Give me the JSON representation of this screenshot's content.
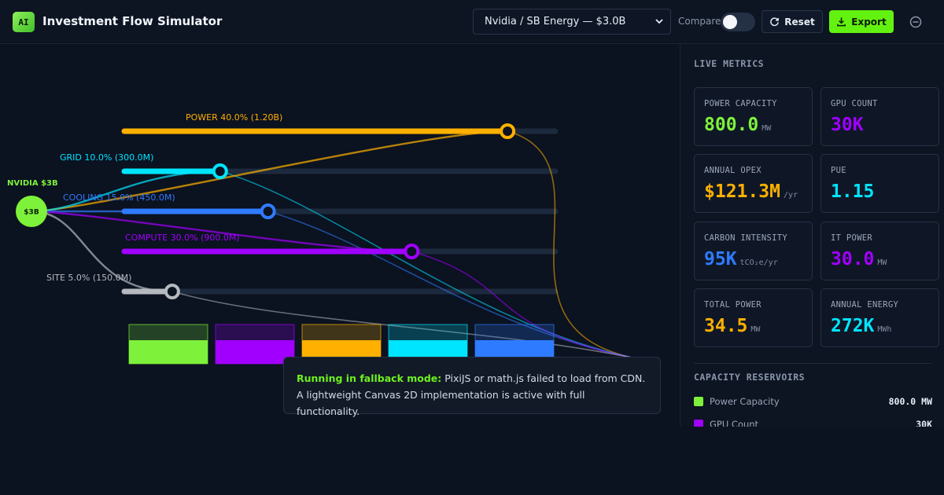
{
  "header": {
    "logo_text": "AI",
    "title": "Investment Flow Simulator",
    "scenario_selected": "Nvidia / SB Energy — $3.0B",
    "compare_label": "Compare",
    "compare_on": false,
    "reset_label": "Reset",
    "export_label": "Export"
  },
  "source": {
    "label": "NVIDIA $3B",
    "node_text": "$3B",
    "color": "#7ef23a"
  },
  "allocations": [
    {
      "key": "power",
      "label": "POWER 40.0% (1.20B)",
      "percent": 40.0,
      "amount": "1.20B",
      "color": "#ffb000"
    },
    {
      "key": "grid",
      "label": "GRID 10.0% (300.0M)",
      "percent": 10.0,
      "amount": "300.0M",
      "color": "#00e5ff"
    },
    {
      "key": "cooling",
      "label": "COOLING 15.0% (450.0M)",
      "percent": 15.0,
      "amount": "450.0M",
      "color": "#2f7bff"
    },
    {
      "key": "compute",
      "label": "COMPUTE 30.0% (900.0M)",
      "percent": 30.0,
      "amount": "900.0M",
      "color": "#a100ff"
    },
    {
      "key": "site",
      "label": "SITE 5.0% (150.0M)",
      "percent": 5.0,
      "amount": "150.0M",
      "color": "#b5b9c0"
    }
  ],
  "reservoirs": [
    {
      "color": "#7ef23a",
      "fill": 0.6
    },
    {
      "color": "#a100ff",
      "fill": 0.6
    },
    {
      "color": "#ffb000",
      "fill": 0.6
    },
    {
      "color": "#00e5ff",
      "fill": 0.6
    },
    {
      "color": "#2f7bff",
      "fill": 0.6
    }
  ],
  "notice": {
    "highlight": "Running in fallback mode:",
    "text": " PixiJS or math.js failed to load from CDN. A lightweight Canvas 2D implementation is active with full functionality."
  },
  "sidebar": {
    "live_title": "LIVE METRICS",
    "metrics": [
      {
        "label": "POWER CAPACITY",
        "value": "800.0",
        "unit": "MW",
        "color": "#7ef23a"
      },
      {
        "label": "GPU COUNT",
        "value": "30K",
        "unit": "",
        "color": "#a100ff"
      },
      {
        "label": "ANNUAL OPEX",
        "value": "$121.3M",
        "unit": "/yr",
        "color": "#ffb000"
      },
      {
        "label": "PUE",
        "value": "1.15",
        "unit": "",
        "color": "#00e5ff"
      },
      {
        "label": "CARBON INTENSITY",
        "value": "95K",
        "unit": "tCO₂e/yr",
        "color": "#2f7bff"
      },
      {
        "label": "IT POWER",
        "value": "30.0",
        "unit": "MW",
        "color": "#a100ff"
      },
      {
        "label": "TOTAL POWER",
        "value": "34.5",
        "unit": "MW",
        "color": "#ffb000"
      },
      {
        "label": "ANNUAL ENERGY",
        "value": "272K",
        "unit": "MWh",
        "color": "#00e5ff"
      }
    ],
    "reservoirs_title": "CAPACITY RESERVOIRS",
    "reservoir_rows": [
      {
        "name": "Power Capacity",
        "value": "800.0 MW",
        "color": "#7ef23a"
      },
      {
        "name": "GPU Count",
        "value": "30K",
        "color": "#a100ff"
      }
    ]
  }
}
